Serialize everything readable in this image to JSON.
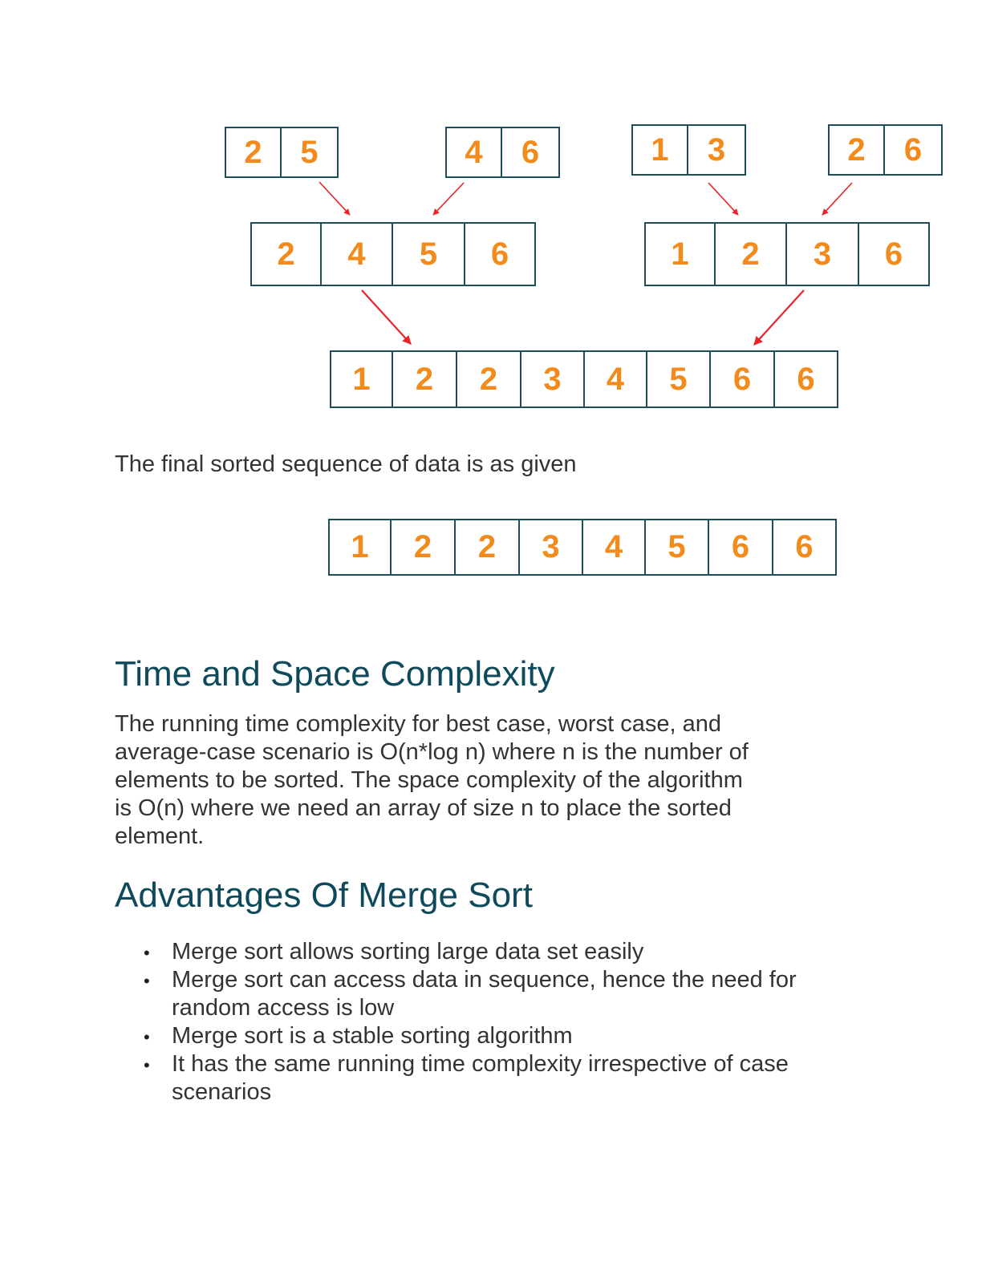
{
  "diagram": {
    "level1_left_a": [
      "2",
      "5"
    ],
    "level1_left_b": [
      "4",
      "6"
    ],
    "level1_right_a": [
      "1",
      "3"
    ],
    "level1_right_b": [
      "2",
      "6"
    ],
    "level2_left": [
      "2",
      "4",
      "5",
      "6"
    ],
    "level2_right": [
      "1",
      "2",
      "3",
      "6"
    ],
    "level3_merged": [
      "1",
      "2",
      "2",
      "3",
      "4",
      "5",
      "6",
      "6"
    ],
    "colors": {
      "digit": "#f28a1c",
      "box_border": "#1d4f5a",
      "arrow": "#e8232a"
    }
  },
  "final_sentence": "The final sorted sequence of data is as given",
  "final_array": [
    "1",
    "2",
    "2",
    "3",
    "4",
    "5",
    "6",
    "6"
  ],
  "complexity": {
    "heading": "Time and Space Complexity",
    "lines": [
      "The running time complexity for best case, worst case, and",
      "average-case scenario is O(n*log n) where n is the number of",
      "elements to be sorted. The space complexity of the algorithm",
      "is O(n) where we need an array of size n to place the sorted",
      "element."
    ]
  },
  "advantages": {
    "heading": "Advantages Of Merge Sort",
    "items": [
      {
        "lines": [
          "Merge sort allows sorting large data set easily"
        ]
      },
      {
        "lines": [
          "Merge sort can access data in sequence, hence the need for",
          "random access is low"
        ]
      },
      {
        "lines": [
          "Merge sort is a stable sorting algorithm"
        ]
      },
      {
        "lines": [
          "It has the same running time complexity irrespective of case",
          "scenarios"
        ]
      }
    ]
  },
  "bullet_glyph": "•"
}
